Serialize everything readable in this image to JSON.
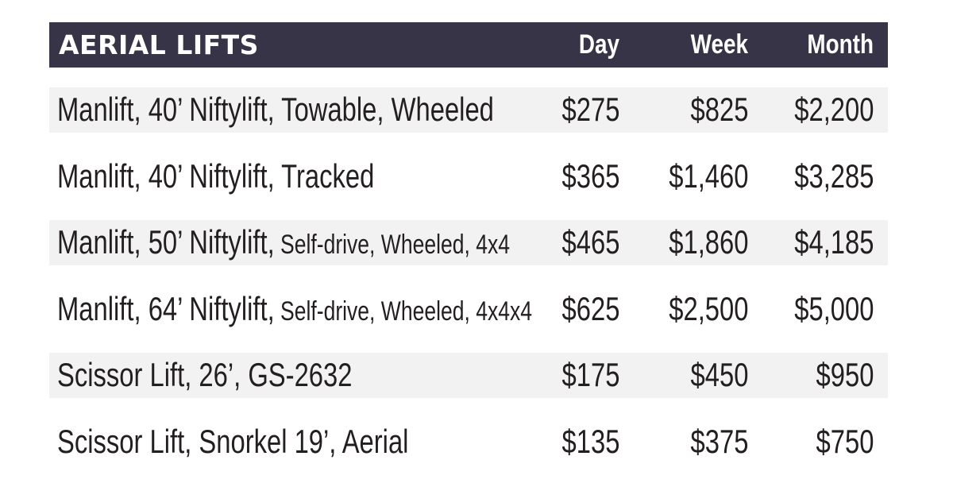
{
  "header": {
    "title": "AERIAL LIFTS",
    "day": "Day",
    "week": "Week",
    "month": "Month"
  },
  "rows": [
    {
      "main": "Manlift, 40’ Niftylift, Towable, Wheeled",
      "sub": "",
      "day": "$275",
      "week": "$825",
      "month": "$2,200"
    },
    {
      "main": "Manlift, 40’ Niftylift, Tracked",
      "sub": "",
      "day": "$365",
      "week": "$1,460",
      "month": "$3,285"
    },
    {
      "main": "Manlift, 50’ Niftylift,",
      "sub": " Self-drive, Wheeled, 4x4",
      "day": "$465",
      "week": "$1,860",
      "month": "$4,185"
    },
    {
      "main": "Manlift, 64’ Niftylift,",
      "sub": " Self-drive, Wheeled, 4x4x4",
      "day": "$625",
      "week": "$2,500",
      "month": "$5,000"
    },
    {
      "main": "Scissor Lift, 26’, GS-2632",
      "sub": "",
      "day": "$175",
      "week": "$450",
      "month": "$950"
    },
    {
      "main": "Scissor Lift, Snorkel 19’, Aerial",
      "sub": "",
      "day": "$135",
      "week": "$375",
      "month": "$750"
    }
  ],
  "colors": {
    "header_bg": "#363446",
    "shaded_row": "#f2f2f2",
    "text": "#231f20"
  }
}
